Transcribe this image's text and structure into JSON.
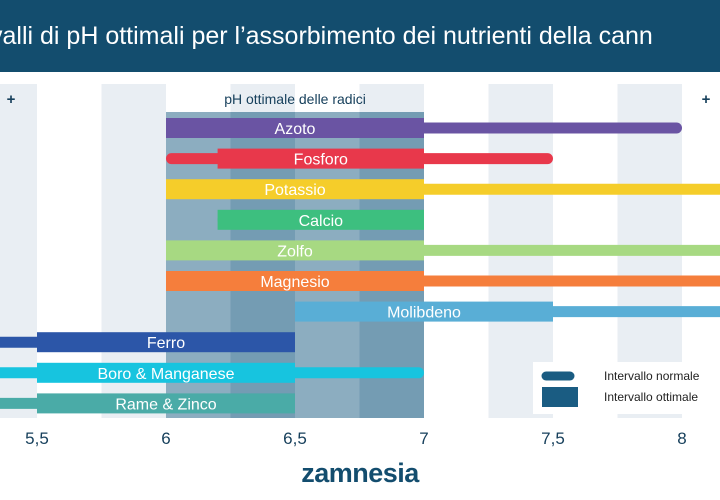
{
  "title": "valli di pH ottimali per l’assorbimento dei nutrienti della cann",
  "optimal_zone_label": "pH ottimale delle radici",
  "edge_markers": [
    "+",
    "+"
  ],
  "logo": "zamnesia",
  "legend": {
    "normal": "Intervallo normale",
    "optimal": "Intervallo ottimale"
  },
  "colors": {
    "title_bar": "#134d6e",
    "optimal_zone": "#1a5c82",
    "stripe": "#e9eef3",
    "axis_text": "#17405c"
  },
  "chart_data": {
    "type": "bar",
    "orientation": "horizontal-range",
    "title": "valli di pH ottimali per l’assorbimento dei nutrienti della cann",
    "xlabel": "",
    "ylabel": "",
    "xlim": [
      5.0,
      8.0
    ],
    "x_ticks": [
      5.5,
      6,
      6.5,
      7,
      7.5,
      8
    ],
    "x_tick_labels": [
      "5,5",
      "6",
      "6,5",
      "7",
      "7,5",
      "8"
    ],
    "optimal_root_ph": [
      6.0,
      7.0
    ],
    "series": [
      {
        "name": "Azoto",
        "color": "#6a54a3",
        "normal": [
          6.0,
          8.0
        ],
        "optimal": [
          6.0,
          7.0
        ]
      },
      {
        "name": "Fosforo",
        "color": "#e8384b",
        "normal": [
          6.0,
          7.5
        ],
        "optimal": [
          6.2,
          7.0
        ]
      },
      {
        "name": "Potassio",
        "color": "#f5cd2a",
        "normal": [
          6.0,
          8.2
        ],
        "optimal": [
          6.0,
          7.0
        ]
      },
      {
        "name": "Calcio",
        "color": "#3dbf7f",
        "normal": [
          6.2,
          7.0
        ],
        "optimal": [
          6.2,
          7.0
        ]
      },
      {
        "name": "Zolfo",
        "color": "#a7d982",
        "normal": [
          6.0,
          8.2
        ],
        "optimal": [
          6.0,
          7.0
        ]
      },
      {
        "name": "Magnesio",
        "color": "#f57e3c",
        "normal": [
          6.0,
          8.2
        ],
        "optimal": [
          6.0,
          7.0
        ]
      },
      {
        "name": "Molibdeno",
        "color": "#59aed6",
        "normal": [
          6.5,
          8.2
        ],
        "optimal": [
          6.5,
          7.5
        ]
      },
      {
        "name": "Ferro",
        "color": "#2c56a8",
        "normal": [
          4.8,
          6.5
        ],
        "optimal": [
          5.5,
          6.5
        ]
      },
      {
        "name": "Boro & Manganese",
        "color": "#17c4df",
        "normal": [
          4.8,
          7.0
        ],
        "optimal": [
          5.5,
          6.5
        ]
      },
      {
        "name": "Rame & Zinco",
        "color": "#4aaba7",
        "normal": [
          4.8,
          6.5
        ],
        "optimal": [
          5.5,
          6.5
        ]
      }
    ],
    "legend_position": "bottom-right",
    "grid": "alternating vertical stripes"
  }
}
